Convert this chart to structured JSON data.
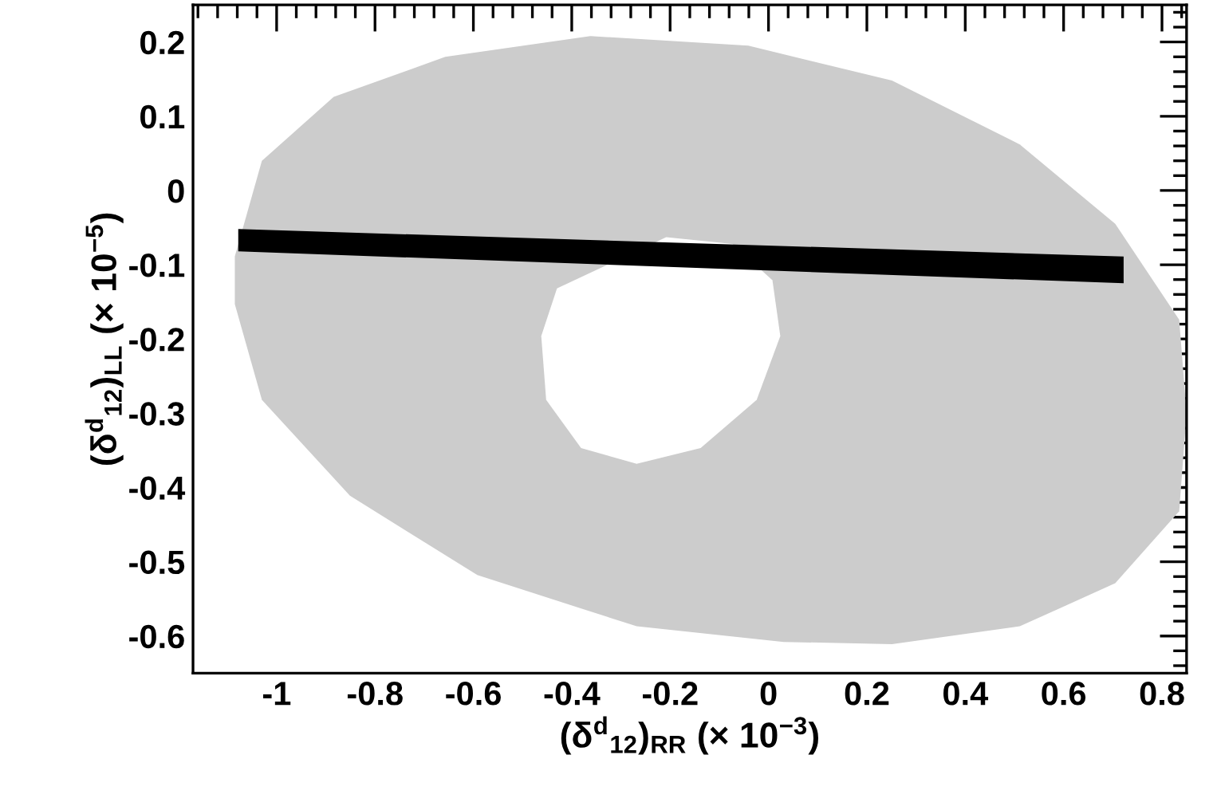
{
  "chart_data": {
    "type": "area",
    "xlabel": "(δ$^{d}$$_{12}$)$_{RR}$ (× 10$^{−3}$)",
    "ylabel": "(δ$^{d}$$_{12}$)$_{LL}$ (× 10$^{−5}$)",
    "xlim": [
      -1.17,
      0.85
    ],
    "ylim": [
      -0.65,
      0.25
    ],
    "xticks": [
      -1,
      -0.8,
      -0.6,
      -0.4,
      -0.2,
      0,
      0.2,
      0.4,
      0.6,
      0.8
    ],
    "yticks": [
      -0.6,
      -0.5,
      -0.4,
      -0.3,
      -0.2,
      -0.1,
      0,
      0.1,
      0.2
    ],
    "grid": false,
    "series": [
      {
        "color": "#cccccc",
        "x": [
          -0.362,
          -0.041,
          0.251,
          0.511,
          0.705,
          0.835,
          0.85,
          0.835,
          0.705,
          0.511,
          0.251,
          0.031,
          -0.268,
          -0.592,
          -0.851,
          -1.03,
          -1.085,
          -1.085,
          -1.03,
          -0.884,
          -0.657
        ],
        "values": [
          0.208,
          0.195,
          0.148,
          0.062,
          -0.045,
          -0.174,
          -0.3,
          -0.432,
          -0.529,
          -0.587,
          -0.611,
          -0.608,
          -0.587,
          -0.518,
          -0.411,
          -0.282,
          -0.153,
          -0.089,
          0.04,
          0.126,
          0.18
        ]
      },
      {
        "color": "#ffffff",
        "x": [
          -0.208,
          -0.073,
          0.008,
          0.024,
          -0.024,
          -0.138,
          -0.268,
          -0.381,
          -0.452,
          -0.462,
          -0.43
        ],
        "values": [
          -0.063,
          -0.072,
          -0.121,
          -0.196,
          -0.282,
          -0.347,
          -0.368,
          -0.347,
          -0.282,
          -0.196,
          -0.132
        ]
      },
      {
        "color": "#000000",
        "x": [
          -1.078,
          0.722,
          0.722,
          -1.078
        ],
        "values": [
          -0.052,
          -0.089,
          -0.125,
          -0.082
        ]
      }
    ]
  }
}
